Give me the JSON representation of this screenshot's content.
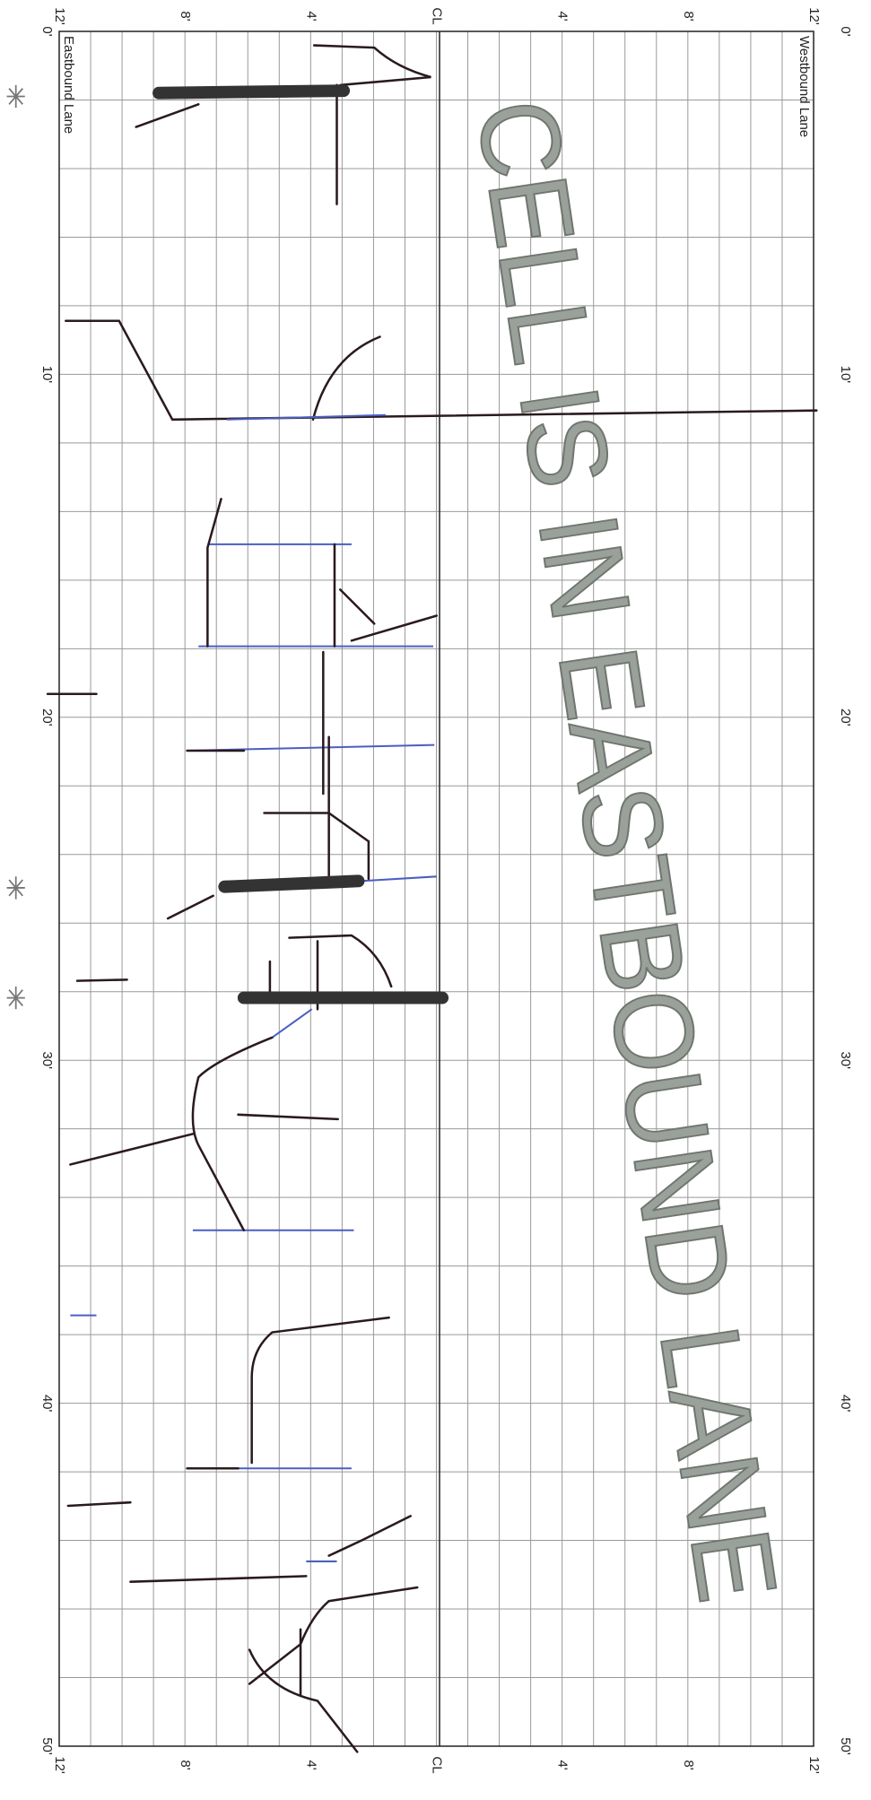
{
  "top_labels": [
    "12'",
    "8'",
    "4'",
    "CL",
    "4'",
    "8'",
    "12'"
  ],
  "bottom_labels": [
    "12'",
    "8'",
    "4'",
    "CL",
    "4'",
    "8'",
    "12'"
  ],
  "left_labels": [
    "0'",
    "10'",
    "20'",
    "30'",
    "40'",
    "50'"
  ],
  "right_labels": [
    "0'",
    "10'",
    "20'",
    "30'",
    "40'",
    "50'"
  ],
  "lane_labels": {
    "eastbound": "Eastbound Lane",
    "westbound": "Westbound Lane"
  },
  "stamp": "CELL IS IN EASTBOUND LANE"
}
